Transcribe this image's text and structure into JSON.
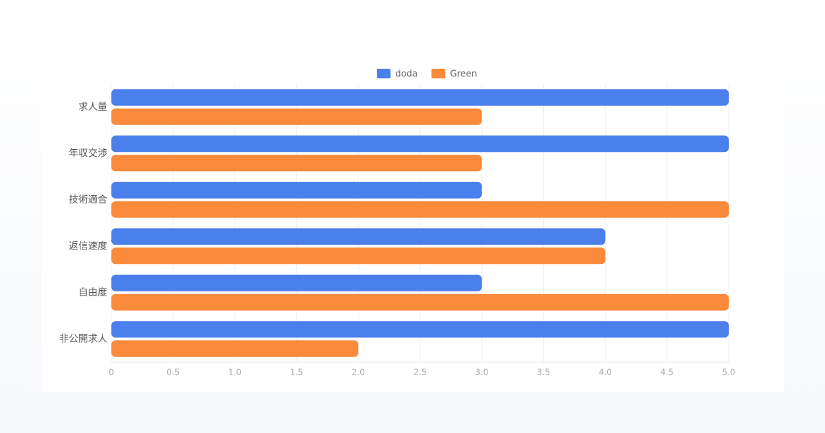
{
  "chart_data": {
    "type": "bar",
    "orientation": "horizontal",
    "categories": [
      "求人量",
      "年収交渉",
      "技術適合",
      "返信速度",
      "自由度",
      "非公開求人"
    ],
    "series": [
      {
        "name": "doda",
        "color": "#4a7fec",
        "values": [
          5,
          5,
          3,
          4,
          3,
          5
        ]
      },
      {
        "name": "Green",
        "color": "#fb8a3a",
        "values": [
          3,
          3,
          5,
          4,
          5,
          2
        ]
      }
    ],
    "xlim": [
      0,
      5
    ],
    "xticks": [
      0,
      0.5,
      {
        "value": 1,
        "label": "1.0"
      },
      1.5,
      {
        "value": 2,
        "label": "2.0"
      },
      2.5,
      {
        "value": 3,
        "label": "3.0"
      },
      3.5,
      {
        "value": 4,
        "label": "4.0"
      },
      4.5,
      {
        "value": 5,
        "label": "5.0"
      }
    ],
    "grid": true,
    "legend": "top"
  }
}
